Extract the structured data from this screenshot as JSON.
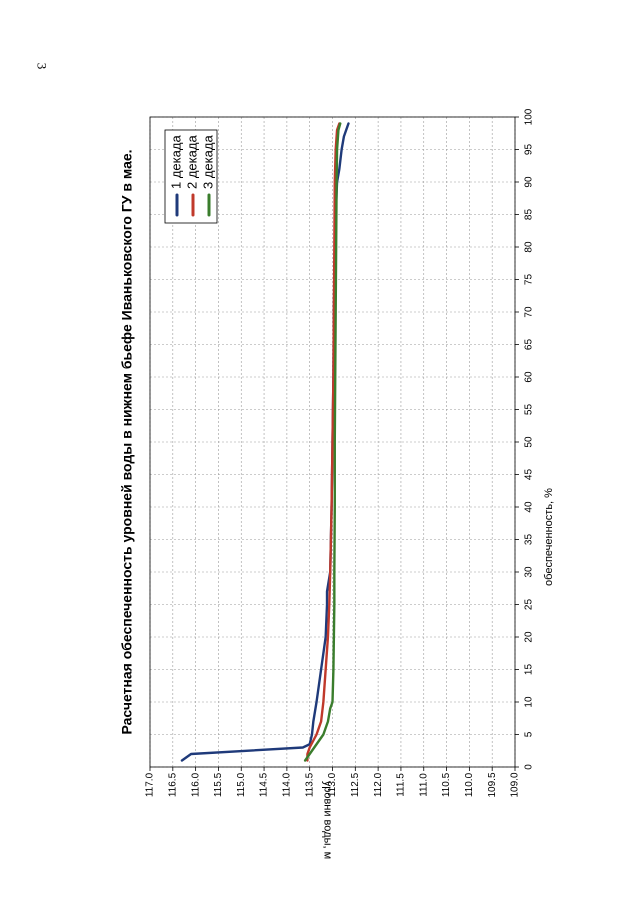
{
  "page": {
    "number": "3"
  },
  "chart_data": {
    "type": "line",
    "title": "Расчетная обеспеченность уровней воды в нижнем бьефе Иваньковского ГУ в мае.",
    "xlabel": "обеспеченность, %",
    "ylabel": "уровни воды, м",
    "xlim": [
      0,
      100
    ],
    "ylim": [
      109.0,
      117.0
    ],
    "x_ticks": [
      0,
      5,
      10,
      15,
      20,
      25,
      30,
      35,
      40,
      45,
      50,
      55,
      60,
      65,
      70,
      75,
      80,
      85,
      90,
      95,
      100
    ],
    "y_ticks": [
      109.0,
      109.5,
      110.0,
      110.5,
      111.0,
      111.5,
      112.0,
      112.5,
      113.0,
      113.5,
      114.0,
      114.5,
      115.0,
      115.5,
      116.0,
      116.5,
      117.0
    ],
    "grid": true,
    "legend_position": "top-right",
    "orientation": "rotated-90",
    "series": [
      {
        "name": "1 декада",
        "color": "#1f3a7a",
        "x": [
          1,
          1.5,
          2,
          3,
          3.5,
          5,
          7,
          10,
          15,
          20,
          25,
          27,
          30,
          40,
          50,
          60,
          70,
          80,
          85,
          90,
          92,
          95,
          97,
          99
        ],
        "y": [
          116.3,
          116.2,
          116.1,
          113.65,
          113.5,
          113.45,
          113.42,
          113.35,
          113.25,
          113.15,
          113.12,
          113.12,
          113.05,
          113.02,
          113.0,
          112.98,
          112.97,
          112.95,
          112.93,
          112.9,
          112.85,
          112.8,
          112.75,
          112.65
        ]
      },
      {
        "name": "2 декада",
        "color": "#c0392b",
        "x": [
          1,
          2,
          3,
          5,
          7,
          10,
          15,
          20,
          25,
          30,
          40,
          50,
          60,
          70,
          80,
          90,
          95,
          98,
          99
        ],
        "y": [
          113.55,
          113.55,
          113.5,
          113.35,
          113.25,
          113.2,
          113.15,
          113.1,
          113.07,
          113.05,
          113.02,
          113.0,
          112.98,
          112.97,
          112.96,
          112.95,
          112.93,
          112.9,
          112.85
        ]
      },
      {
        "name": "3 декада",
        "color": "#3a7d2c",
        "x": [
          1,
          2,
          3,
          4,
          5,
          7,
          9,
          10,
          15,
          20,
          25,
          30,
          40,
          50,
          60,
          70,
          80,
          90,
          95,
          98,
          99
        ],
        "y": [
          113.6,
          113.5,
          113.4,
          113.3,
          113.2,
          113.1,
          113.05,
          113.0,
          112.98,
          112.97,
          112.96,
          112.96,
          112.95,
          112.95,
          112.94,
          112.93,
          112.92,
          112.91,
          112.9,
          112.87,
          112.83
        ]
      }
    ]
  }
}
